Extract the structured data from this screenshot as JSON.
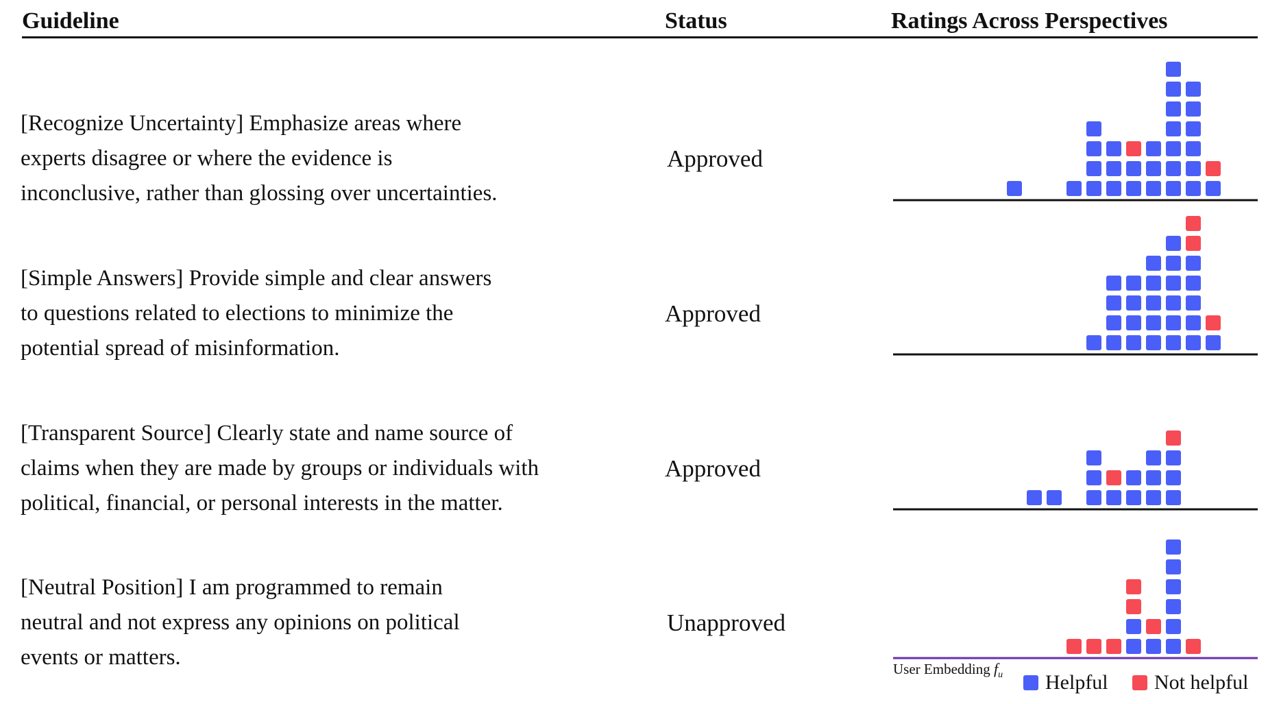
{
  "header": {
    "guideline": "Guideline",
    "status": "Status",
    "ratings": "Ratings Across Perspectives"
  },
  "rows": [
    {
      "guideline_lines": [
        "[Recognize Uncertainty] Emphasize areas where",
        "experts disagree or where the evidence is",
        "inconclusive, rather than glossing over uncertainties."
      ],
      "status": "Approved"
    },
    {
      "guideline_lines": [
        "[Simple Answers] Provide simple and clear answers",
        "to questions related to elections to minimize the",
        "potential spread of misinformation."
      ],
      "status": "Approved"
    },
    {
      "guideline_lines": [
        "[Transparent Source] Clearly state and name source of",
        "claims when they are made by groups or individuals with",
        "political, financial, or personal interests in the matter."
      ],
      "status": "Approved"
    },
    {
      "guideline_lines": [
        "[Neutral Position] I am programmed to remain",
        "neutral and not express any opinions on political",
        "events or matters."
      ],
      "status": "Unapproved"
    }
  ],
  "chart_data": [
    {
      "type": "unit-histogram",
      "columns": [
        {
          "x": 3,
          "stack": [
            "H"
          ]
        },
        {
          "x": 6,
          "stack": [
            "H"
          ]
        },
        {
          "x": 7,
          "stack": [
            "H",
            "H",
            "H",
            "H"
          ]
        },
        {
          "x": 8,
          "stack": [
            "H",
            "H",
            "H"
          ]
        },
        {
          "x": 9,
          "stack": [
            "H",
            "H",
            "N"
          ]
        },
        {
          "x": 10,
          "stack": [
            "H",
            "H",
            "H"
          ]
        },
        {
          "x": 11,
          "stack": [
            "H",
            "H",
            "H",
            "H",
            "H",
            "H",
            "H"
          ]
        },
        {
          "x": 12,
          "stack": [
            "H",
            "H",
            "H",
            "H",
            "H",
            "H"
          ]
        },
        {
          "x": 13,
          "stack": [
            "H",
            "N"
          ]
        }
      ]
    },
    {
      "type": "unit-histogram",
      "columns": [
        {
          "x": 7,
          "stack": [
            "H"
          ]
        },
        {
          "x": 8,
          "stack": [
            "H",
            "H",
            "H",
            "H"
          ]
        },
        {
          "x": 9,
          "stack": [
            "H",
            "H",
            "H",
            "H"
          ]
        },
        {
          "x": 10,
          "stack": [
            "H",
            "H",
            "H",
            "H",
            "H"
          ]
        },
        {
          "x": 11,
          "stack": [
            "H",
            "H",
            "H",
            "H",
            "H",
            "H"
          ]
        },
        {
          "x": 12,
          "stack": [
            "H",
            "H",
            "H",
            "H",
            "H",
            "N",
            "N"
          ]
        },
        {
          "x": 13,
          "stack": [
            "H",
            "N"
          ]
        }
      ]
    },
    {
      "type": "unit-histogram",
      "columns": [
        {
          "x": 4,
          "stack": [
            "H"
          ]
        },
        {
          "x": 5,
          "stack": [
            "H"
          ]
        },
        {
          "x": 7,
          "stack": [
            "H",
            "H",
            "H"
          ]
        },
        {
          "x": 8,
          "stack": [
            "H",
            "N"
          ]
        },
        {
          "x": 9,
          "stack": [
            "H",
            "H"
          ]
        },
        {
          "x": 10,
          "stack": [
            "H",
            "H",
            "H"
          ]
        },
        {
          "x": 11,
          "stack": [
            "H",
            "H",
            "H",
            "N"
          ]
        }
      ]
    },
    {
      "type": "unit-histogram",
      "columns": [
        {
          "x": 6,
          "stack": [
            "N"
          ]
        },
        {
          "x": 7,
          "stack": [
            "N"
          ]
        },
        {
          "x": 8,
          "stack": [
            "N"
          ]
        },
        {
          "x": 9,
          "stack": [
            "H",
            "H",
            "N",
            "N"
          ]
        },
        {
          "x": 10,
          "stack": [
            "H",
            "N"
          ]
        },
        {
          "x": 11,
          "stack": [
            "H",
            "H",
            "H",
            "H",
            "H",
            "H"
          ]
        },
        {
          "x": 12,
          "stack": [
            "N"
          ]
        }
      ]
    }
  ],
  "axis_caption": {
    "text": "User Embedding",
    "symbol": "f",
    "subscript": "u"
  },
  "legend": [
    {
      "key": "H",
      "label": "Helpful",
      "color": "#4a5ff7"
    },
    {
      "key": "N",
      "label": "Not helpful",
      "color": "#f64a55"
    }
  ],
  "colors": {
    "text": "#111111",
    "helpful": "#4a5ff7",
    "not_helpful": "#f64a55",
    "last_axis": "#6b2fae"
  }
}
